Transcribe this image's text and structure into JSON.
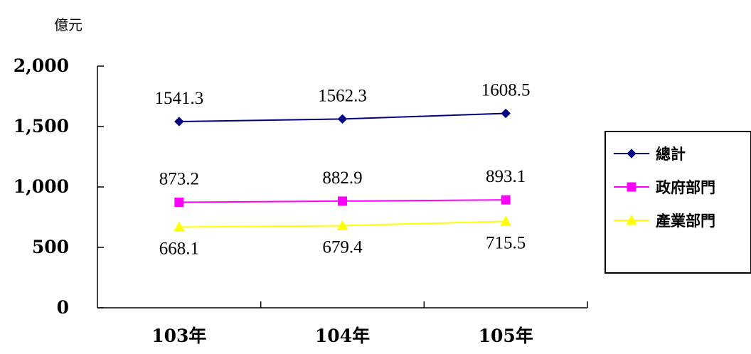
{
  "chart_data": {
    "type": "line",
    "ylabel": "億元",
    "categories": [
      "103年",
      "104年",
      "105年"
    ],
    "ylim": [
      0,
      2000
    ],
    "yticks": [
      0,
      500,
      1000,
      1500,
      2000
    ],
    "ytick_labels": [
      "0",
      "500",
      "1,000",
      "1,500",
      "2,000"
    ],
    "grid": false,
    "legend_position": "right",
    "series": [
      {
        "name": "總計",
        "values": [
          1541.3,
          1562.3,
          1608.5
        ],
        "labels": [
          "1541.3",
          "1562.3",
          "1608.5"
        ],
        "color": "#000080",
        "marker": "diamond",
        "label_position": "above"
      },
      {
        "name": "政府部門",
        "values": [
          873.2,
          882.9,
          893.1
        ],
        "labels": [
          "873.2",
          "882.9",
          "893.1"
        ],
        "color": "#ff00ff",
        "marker": "square",
        "label_position": "above"
      },
      {
        "name": "產業部門",
        "values": [
          668.1,
          679.4,
          715.5
        ],
        "labels": [
          "668.1",
          "679.4",
          "715.5"
        ],
        "color": "#ffff00",
        "marker": "triangle",
        "label_position": "below"
      }
    ]
  }
}
